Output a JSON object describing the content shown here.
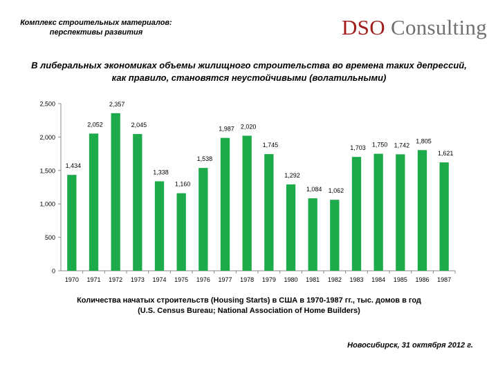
{
  "header": {
    "line1": "Комплекс строительных материалов:",
    "line2": "перспективы развития",
    "logo_brand": "DSO",
    "logo_rest": " Consulting"
  },
  "title": {
    "line1": "В либеральных экономиках объемы жилищного строительства во времена таких депрессий,",
    "line2": "как правило, становятся неустойчивыми (волатильными)"
  },
  "caption": {
    "line1": "Количества начатых строительств (Housing Starts) в США в 1970-1987 гг., тыс. домов в год",
    "line2": "(U.S. Census Bureau; National Association of Home Builders)"
  },
  "footer": "Новосибирск, 31 октября 2012 г.",
  "colors": {
    "bar": "#1daa4a",
    "axis": "#888888",
    "grid": "#d9d9d9"
  },
  "chart_data": {
    "type": "bar",
    "title": "",
    "xlabel": "",
    "ylabel": "",
    "categories": [
      "1970",
      "1971",
      "1972",
      "1973",
      "1974",
      "1975",
      "1976",
      "1977",
      "1978",
      "1979",
      "1980",
      "1981",
      "1982",
      "1983",
      "1984",
      "1985",
      "1986",
      "1987"
    ],
    "values": [
      1434,
      2052,
      2357,
      2045,
      1338,
      1160,
      1538,
      1987,
      2020,
      1745,
      1292,
      1084,
      1062,
      1703,
      1750,
      1742,
      1805,
      1621
    ],
    "value_labels": [
      "1,434",
      "2,052",
      "2,357",
      "2,045",
      "1,338",
      "1,160",
      "1,538",
      "1,987",
      "2,020",
      "1,745",
      "1,292",
      "1,084",
      "1,062",
      "1,703",
      "1,750",
      "1,742",
      "1,805",
      "1,621"
    ],
    "ylim": [
      0,
      2500
    ],
    "yticks": [
      0,
      500,
      1000,
      1500,
      2000,
      2500
    ],
    "ytick_labels": [
      "0",
      "500",
      "1,000",
      "1,500",
      "2,000",
      "2,500"
    ],
    "grid": false,
    "legend": "none"
  }
}
